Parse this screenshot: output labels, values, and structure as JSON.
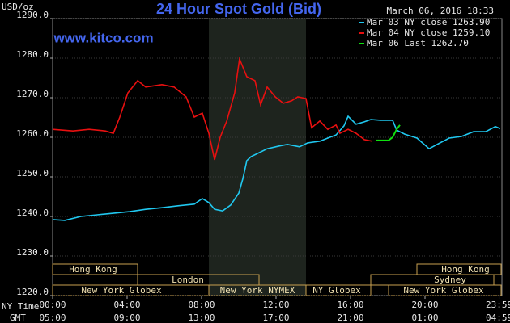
{
  "chart_data": {
    "type": "line",
    "title": "24 Hour Spot Gold (Bid)",
    "source": "www.kitco.com",
    "timestamp": "March 06, 2016 18:33",
    "y_label": "USD/oz",
    "x_label": "NY Time",
    "x2_label": "GMT",
    "xlim": [
      0,
      24.13
    ],
    "xticks": [
      {
        "value": 0,
        "label": "00:00"
      },
      {
        "value": 4,
        "label": "04:00"
      },
      {
        "value": 8,
        "label": "08:00"
      },
      {
        "value": 12,
        "label": "12:00"
      },
      {
        "value": 16,
        "label": "16:00"
      },
      {
        "value": 20,
        "label": "20:00"
      },
      {
        "value": 23.98,
        "label": "23:59"
      }
    ],
    "x2_tick_labels": [
      "05:00",
      "09:00",
      "13:00",
      "17:00",
      "21:00",
      "01:00",
      "04:59"
    ],
    "ylim": [
      1220,
      1290
    ],
    "yticks": [
      {
        "value": 1220,
        "label": "1220.0"
      },
      {
        "value": 1230,
        "label": "1230.0"
      },
      {
        "value": 1240,
        "label": "1240.0"
      },
      {
        "value": 1250,
        "label": "1250.0"
      },
      {
        "value": 1260,
        "label": "1260.0"
      },
      {
        "value": 1270,
        "label": "1270.0"
      },
      {
        "value": 1280,
        "label": "1280.0"
      },
      {
        "value": 1290,
        "label": "1290.0"
      }
    ],
    "grid": true,
    "legend": "top-right",
    "sessions": [
      "Hong Kong",
      "Hong Kong",
      "London",
      "Sydney",
      "New York Globex",
      "New York NYMEX",
      "NY Globex",
      "New York Globex"
    ],
    "series": [
      {
        "name": "Mar 03 NY close 1263.90",
        "color": "#20c8f0",
        "x": [
          0,
          0.65,
          1.52,
          2.39,
          3.26,
          4.13,
          5.0,
          5.87,
          6.74,
          7.61,
          8.04,
          8.39,
          8.7,
          9.13,
          9.57,
          10.0,
          10.22,
          10.43,
          10.65,
          11.09,
          11.52,
          12.17,
          12.61,
          13.26,
          13.7,
          14.35,
          14.78,
          15.22,
          15.65,
          15.87,
          16.3,
          16.74,
          17.09,
          17.61,
          18.26,
          18.48,
          18.91,
          19.57,
          20.22,
          20.65,
          21.3,
          21.96,
          22.61,
          23.26,
          23.78,
          24.04
        ],
        "values": [
          1239.2,
          1239.0,
          1240.0,
          1240.4,
          1240.8,
          1241.2,
          1241.8,
          1242.2,
          1242.7,
          1243.1,
          1244.5,
          1243.5,
          1241.8,
          1241.4,
          1242.9,
          1245.9,
          1249.6,
          1254.1,
          1255.1,
          1256.1,
          1257.1,
          1257.8,
          1258.2,
          1257.6,
          1258.6,
          1259.0,
          1259.8,
          1260.6,
          1262.9,
          1265.3,
          1263.3,
          1263.9,
          1264.5,
          1264.3,
          1264.3,
          1261.8,
          1260.8,
          1259.8,
          1257.1,
          1258.2,
          1259.8,
          1260.2,
          1261.4,
          1261.4,
          1262.7,
          1262.2
        ]
      },
      {
        "name": "Mar 04 NY close 1259.10",
        "color": "#e81010",
        "x": [
          0,
          1.09,
          1.96,
          2.83,
          3.26,
          3.61,
          4.04,
          4.57,
          5.0,
          5.87,
          6.52,
          7.17,
          7.61,
          8.04,
          8.39,
          8.7,
          9.0,
          9.35,
          9.78,
          10.04,
          10.43,
          10.87,
          11.17,
          11.52,
          11.96,
          12.39,
          12.83,
          13.17,
          13.61,
          13.91,
          14.35,
          14.78,
          15.22,
          15.43,
          15.87,
          16.3,
          16.74,
          17.17
        ],
        "values": [
          1262.0,
          1261.6,
          1262.0,
          1261.6,
          1261.0,
          1265.1,
          1271.2,
          1274.3,
          1272.7,
          1273.3,
          1272.7,
          1270.2,
          1265.1,
          1266.1,
          1261.0,
          1254.3,
          1260.0,
          1264.1,
          1271.2,
          1279.8,
          1275.3,
          1274.3,
          1268.2,
          1272.7,
          1270.2,
          1268.6,
          1269.2,
          1270.2,
          1269.8,
          1262.4,
          1264.1,
          1262.0,
          1263.1,
          1261.0,
          1262.0,
          1261.0,
          1259.4,
          1259.0
        ]
      },
      {
        "name": "Mar 06 Last 1262.70",
        "color": "#10e010",
        "x": [
          17.39,
          18.04,
          18.26,
          18.48,
          18.65
        ],
        "values": [
          1259.2,
          1259.2,
          1260.0,
          1262.0,
          1263.1
        ]
      }
    ]
  }
}
